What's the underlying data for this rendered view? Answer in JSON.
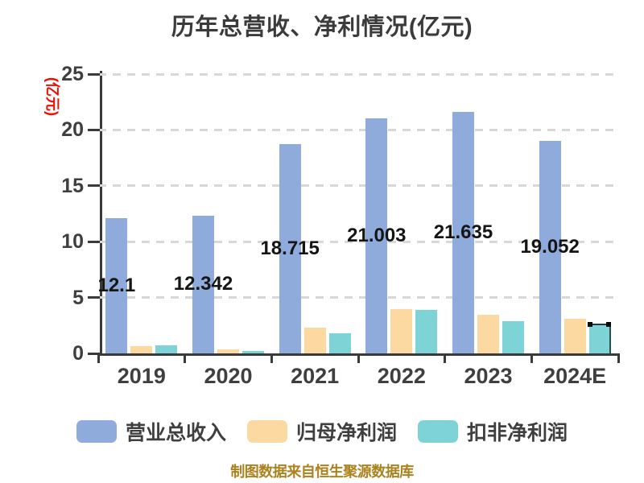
{
  "title": "历年总营收、净利情况(亿元)",
  "y_axis_label": "(亿元)",
  "footer": "制图数据来自恒生聚源数据库",
  "colors": {
    "background": "#ffffff",
    "title_text": "#3b3b3b",
    "axis_text": "#3f3f3f",
    "axis_line": "#3a3a3a",
    "gridline": "#d8d8d8",
    "value_label_text": "#151515",
    "y_unit_text": "#f20d00",
    "footer_text": "#ab821d",
    "series_blue": "#8EABDB",
    "series_tan": "#FCD9A0",
    "series_teal": "#7ED3D7"
  },
  "chart_data": {
    "type": "bar",
    "title": "历年总营收、净利情况(亿元)",
    "xlabel": "",
    "ylabel": "(亿元)",
    "categories": [
      "2019",
      "2020",
      "2021",
      "2022",
      "2023",
      "2024E"
    ],
    "series": [
      {
        "name": "营业总收入",
        "color": "#8EABDB",
        "values": [
          12.1,
          12.342,
          18.715,
          21.003,
          21.635,
          19.052
        ]
      },
      {
        "name": "归母净利润",
        "color": "#FCD9A0",
        "values": [
          0.66,
          0.33,
          2.3,
          3.95,
          3.45,
          3.1
        ]
      },
      {
        "name": "扣非净利润",
        "color": "#7ED3D7",
        "values": [
          0.7,
          0.19,
          1.8,
          3.9,
          2.9,
          2.64
        ]
      }
    ],
    "bar_labels": [
      "12.1",
      "12.342",
      "18.715",
      "21.003",
      "21.635",
      "19.052"
    ],
    "labeled_series": "营业总收入",
    "ylim": [
      0,
      25
    ],
    "yticks": [
      0,
      5,
      10,
      15,
      20,
      25
    ],
    "grid": "horizontal dashed",
    "legend_position": "bottom",
    "estimate_marker": {
      "category": "2024E",
      "series": "扣非净利润"
    }
  },
  "legend": {
    "items": [
      {
        "label": "营业总收入",
        "color": "#8EABDB"
      },
      {
        "label": "归母净利润",
        "color": "#FCD9A0"
      },
      {
        "label": "扣非净利润",
        "color": "#7ED3D7"
      }
    ]
  }
}
